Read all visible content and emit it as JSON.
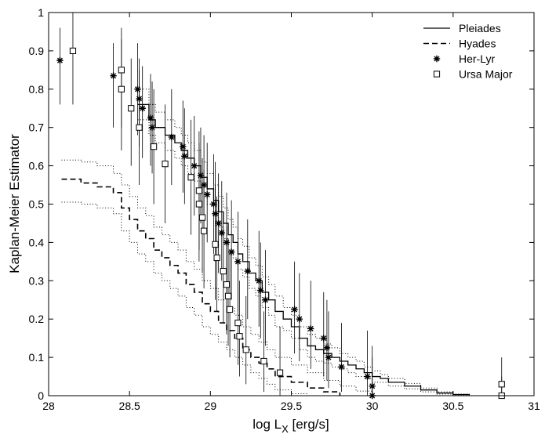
{
  "chart_data": {
    "type": "scatter",
    "title": "",
    "xlabel": "log L",
    "xlabel_subscript": "X",
    "xlabel_units": " [erg/s]",
    "ylabel": "Kaplan-Meier Estimator",
    "xlim": [
      28,
      31
    ],
    "ylim": [
      0,
      1
    ],
    "x_ticks": [
      28,
      28.5,
      29,
      29.5,
      30,
      30.5,
      31
    ],
    "x_tick_labels": [
      "28",
      "28.5",
      "29",
      "29.5",
      "30",
      "30.5",
      "31"
    ],
    "y_ticks": [
      0,
      0.1,
      0.2,
      0.3,
      0.4,
      0.5,
      0.6,
      0.7,
      0.8,
      0.9,
      1
    ],
    "y_tick_labels": [
      "0",
      "0.1",
      "0.2",
      "0.3",
      "0.4",
      "0.5",
      "0.6",
      "0.7",
      "0.8",
      "0.9",
      "1"
    ],
    "grid": false,
    "legend_position": "top-right",
    "legend": [
      {
        "name": "Pleiades",
        "marker": "solid-line"
      },
      {
        "name": "Hyades",
        "marker": "dashed-line"
      },
      {
        "name": "Her-Lyr",
        "marker": "asterisk"
      },
      {
        "name": "Ursa Major",
        "marker": "open-square"
      }
    ],
    "series": [
      {
        "name": "Pleiades",
        "style": "step-solid",
        "x": [
          28.55,
          28.62,
          28.66,
          28.72,
          28.78,
          28.82,
          28.86,
          28.9,
          28.94,
          28.98,
          29.02,
          29.05,
          29.08,
          29.11,
          29.14,
          29.17,
          29.2,
          29.24,
          29.28,
          29.32,
          29.36,
          29.4,
          29.45,
          29.5,
          29.55,
          29.6,
          29.65,
          29.7,
          29.75,
          29.8,
          29.85,
          29.9,
          29.95,
          30.0,
          30.05,
          30.1,
          30.2,
          30.3,
          30.4,
          30.5,
          30.6
        ],
        "y": [
          0.76,
          0.72,
          0.7,
          0.68,
          0.66,
          0.64,
          0.62,
          0.6,
          0.57,
          0.54,
          0.51,
          0.48,
          0.45,
          0.42,
          0.4,
          0.37,
          0.35,
          0.32,
          0.3,
          0.27,
          0.25,
          0.22,
          0.2,
          0.18,
          0.15,
          0.13,
          0.12,
          0.11,
          0.1,
          0.09,
          0.08,
          0.07,
          0.06,
          0.05,
          0.045,
          0.035,
          0.025,
          0.015,
          0.007,
          0.003,
          0.0
        ]
      },
      {
        "name": "Pleiades upper bound",
        "style": "step-dotted",
        "x": [
          28.55,
          28.62,
          28.66,
          28.72,
          28.78,
          28.82,
          28.86,
          28.9,
          28.94,
          28.98,
          29.02,
          29.05,
          29.08,
          29.11,
          29.14,
          29.17,
          29.2,
          29.24,
          29.28,
          29.32,
          29.36,
          29.4,
          29.45,
          29.5,
          29.55,
          29.6,
          29.65,
          29.7,
          29.75,
          29.8,
          29.85,
          29.9,
          29.95,
          30.0,
          30.05,
          30.1,
          30.2,
          30.3,
          30.4,
          30.5,
          30.6
        ],
        "y": [
          0.8,
          0.76,
          0.74,
          0.72,
          0.7,
          0.68,
          0.66,
          0.64,
          0.61,
          0.58,
          0.55,
          0.52,
          0.49,
          0.46,
          0.44,
          0.41,
          0.39,
          0.36,
          0.34,
          0.31,
          0.29,
          0.26,
          0.23,
          0.21,
          0.18,
          0.16,
          0.15,
          0.135,
          0.125,
          0.11,
          0.1,
          0.09,
          0.075,
          0.065,
          0.055,
          0.045,
          0.032,
          0.02,
          0.01,
          0.004,
          0.0
        ]
      },
      {
        "name": "Pleiades lower bound",
        "style": "step-dotted",
        "x": [
          28.55,
          28.62,
          28.66,
          28.72,
          28.78,
          28.82,
          28.86,
          28.9,
          28.94,
          28.98,
          29.02,
          29.05,
          29.08,
          29.11,
          29.14,
          29.17,
          29.2,
          29.24,
          29.28,
          29.32,
          29.36,
          29.4,
          29.45,
          29.5,
          29.55,
          29.6,
          29.65,
          29.7,
          29.75,
          29.8,
          29.85,
          29.9,
          29.95,
          30.0,
          30.05,
          30.1,
          30.2,
          30.3,
          30.4,
          30.5,
          30.6
        ],
        "y": [
          0.72,
          0.68,
          0.66,
          0.64,
          0.62,
          0.6,
          0.58,
          0.56,
          0.53,
          0.5,
          0.47,
          0.44,
          0.41,
          0.38,
          0.36,
          0.33,
          0.31,
          0.28,
          0.26,
          0.23,
          0.21,
          0.18,
          0.17,
          0.15,
          0.12,
          0.1,
          0.09,
          0.085,
          0.075,
          0.07,
          0.06,
          0.05,
          0.045,
          0.035,
          0.035,
          0.025,
          0.018,
          0.01,
          0.004,
          0.002,
          0.0
        ]
      },
      {
        "name": "Hyades",
        "style": "step-dashed",
        "x": [
          28.08,
          28.2,
          28.3,
          28.4,
          28.45,
          28.5,
          28.55,
          28.6,
          28.65,
          28.7,
          28.75,
          28.8,
          28.85,
          28.9,
          28.95,
          29.0,
          29.05,
          29.1,
          29.15,
          29.2,
          29.25,
          29.3,
          29.35,
          29.4,
          29.5,
          29.6,
          29.7,
          29.8
        ],
        "y": [
          0.565,
          0.555,
          0.545,
          0.53,
          0.49,
          0.46,
          0.43,
          0.41,
          0.38,
          0.36,
          0.34,
          0.32,
          0.29,
          0.27,
          0.24,
          0.22,
          0.19,
          0.17,
          0.15,
          0.12,
          0.1,
          0.085,
          0.07,
          0.05,
          0.035,
          0.02,
          0.01,
          0.0
        ]
      },
      {
        "name": "Hyades upper bound",
        "style": "step-dotted",
        "x": [
          28.08,
          28.2,
          28.3,
          28.4,
          28.45,
          28.5,
          28.55,
          28.6,
          28.65,
          28.7,
          28.75,
          28.8,
          28.85,
          28.9,
          28.95,
          29.0,
          29.05,
          29.1,
          29.15,
          29.2,
          29.25,
          29.3,
          29.35,
          29.4,
          29.5,
          29.6,
          29.7,
          29.8,
          29.9,
          30.0
        ],
        "y": [
          0.615,
          0.61,
          0.6,
          0.58,
          0.55,
          0.52,
          0.49,
          0.47,
          0.44,
          0.42,
          0.4,
          0.38,
          0.35,
          0.33,
          0.3,
          0.28,
          0.25,
          0.23,
          0.21,
          0.18,
          0.16,
          0.14,
          0.12,
          0.1,
          0.08,
          0.06,
          0.04,
          0.025,
          0.012,
          0.0
        ]
      },
      {
        "name": "Hyades lower bound",
        "style": "step-dotted",
        "x": [
          28.08,
          28.2,
          28.3,
          28.4,
          28.45,
          28.5,
          28.55,
          28.6,
          28.65,
          28.7,
          28.75,
          28.8,
          28.85,
          28.9,
          28.95,
          29.0,
          29.05,
          29.1,
          29.15,
          29.2,
          29.25,
          29.3,
          29.35,
          29.4,
          29.5,
          29.6,
          29.7
        ],
        "y": [
          0.505,
          0.5,
          0.49,
          0.475,
          0.43,
          0.4,
          0.37,
          0.35,
          0.32,
          0.3,
          0.28,
          0.26,
          0.23,
          0.21,
          0.18,
          0.16,
          0.14,
          0.12,
          0.1,
          0.08,
          0.06,
          0.045,
          0.03,
          0.015,
          0.005,
          0.0,
          0.0
        ]
      },
      {
        "name": "Her-Lyr",
        "style": "asterisk",
        "points": [
          {
            "x": 28.07,
            "y": 0.875,
            "lo": 0.76,
            "hi": 0.96
          },
          {
            "x": 28.4,
            "y": 0.835,
            "lo": 0.7,
            "hi": 0.92
          },
          {
            "x": 28.55,
            "y": 0.8,
            "lo": 0.68,
            "hi": 0.92
          },
          {
            "x": 28.56,
            "y": 0.775,
            "lo": 0.65,
            "hi": 0.88
          },
          {
            "x": 28.58,
            "y": 0.75,
            "lo": 0.62,
            "hi": 0.86
          },
          {
            "x": 28.63,
            "y": 0.725,
            "lo": 0.6,
            "hi": 0.84
          },
          {
            "x": 28.64,
            "y": 0.7,
            "lo": 0.58,
            "hi": 0.82
          },
          {
            "x": 28.76,
            "y": 0.675,
            "lo": 0.55,
            "hi": 0.8
          },
          {
            "x": 28.83,
            "y": 0.65,
            "lo": 0.53,
            "hi": 0.77
          },
          {
            "x": 28.84,
            "y": 0.625,
            "lo": 0.5,
            "hi": 0.75
          },
          {
            "x": 28.9,
            "y": 0.6,
            "lo": 0.47,
            "hi": 0.73
          },
          {
            "x": 28.94,
            "y": 0.575,
            "lo": 0.45,
            "hi": 0.7
          },
          {
            "x": 28.96,
            "y": 0.55,
            "lo": 0.42,
            "hi": 0.68
          },
          {
            "x": 28.98,
            "y": 0.525,
            "lo": 0.4,
            "hi": 0.66
          },
          {
            "x": 29.02,
            "y": 0.5,
            "lo": 0.37,
            "hi": 0.63
          },
          {
            "x": 29.03,
            "y": 0.475,
            "lo": 0.35,
            "hi": 0.61
          },
          {
            "x": 29.05,
            "y": 0.45,
            "lo": 0.32,
            "hi": 0.58
          },
          {
            "x": 29.07,
            "y": 0.425,
            "lo": 0.3,
            "hi": 0.56
          },
          {
            "x": 29.1,
            "y": 0.4,
            "lo": 0.27,
            "hi": 0.53
          },
          {
            "x": 29.13,
            "y": 0.375,
            "lo": 0.25,
            "hi": 0.51
          },
          {
            "x": 29.17,
            "y": 0.35,
            "lo": 0.22,
            "hi": 0.48
          },
          {
            "x": 29.23,
            "y": 0.325,
            "lo": 0.2,
            "hi": 0.46
          },
          {
            "x": 29.3,
            "y": 0.3,
            "lo": 0.18,
            "hi": 0.43
          },
          {
            "x": 29.31,
            "y": 0.275,
            "lo": 0.15,
            "hi": 0.4
          },
          {
            "x": 29.34,
            "y": 0.25,
            "lo": 0.13,
            "hi": 0.38
          },
          {
            "x": 29.52,
            "y": 0.225,
            "lo": 0.11,
            "hi": 0.35
          },
          {
            "x": 29.55,
            "y": 0.2,
            "lo": 0.09,
            "hi": 0.32
          },
          {
            "x": 29.62,
            "y": 0.175,
            "lo": 0.07,
            "hi": 0.3
          },
          {
            "x": 29.7,
            "y": 0.15,
            "lo": 0.05,
            "hi": 0.27
          },
          {
            "x": 29.72,
            "y": 0.125,
            "lo": 0.04,
            "hi": 0.25
          },
          {
            "x": 29.73,
            "y": 0.1,
            "lo": 0.02,
            "hi": 0.22
          },
          {
            "x": 29.81,
            "y": 0.075,
            "lo": 0.01,
            "hi": 0.19
          },
          {
            "x": 29.97,
            "y": 0.05,
            "lo": 0.0,
            "hi": 0.17
          },
          {
            "x": 30.0,
            "y": 0.025,
            "lo": 0.0,
            "hi": 0.13
          },
          {
            "x": 30.0,
            "y": 0.0,
            "lo": 0.0,
            "hi": 0.1
          }
        ]
      },
      {
        "name": "Ursa Major",
        "style": "open-square",
        "points": [
          {
            "x": 28.15,
            "y": 0.9,
            "lo": 0.76,
            "hi": 1.0
          },
          {
            "x": 28.45,
            "y": 0.85,
            "lo": 0.7,
            "hi": 0.96
          },
          {
            "x": 28.45,
            "y": 0.8,
            "lo": 0.64,
            "hi": 0.93
          },
          {
            "x": 28.51,
            "y": 0.75,
            "lo": 0.6,
            "hi": 0.88
          },
          {
            "x": 28.56,
            "y": 0.7,
            "lo": 0.55,
            "hi": 0.85
          },
          {
            "x": 28.65,
            "y": 0.65,
            "lo": 0.5,
            "hi": 0.8
          },
          {
            "x": 28.72,
            "y": 0.605,
            "lo": 0.45,
            "hi": 0.76
          },
          {
            "x": 28.88,
            "y": 0.57,
            "lo": 0.42,
            "hi": 0.72
          },
          {
            "x": 28.93,
            "y": 0.535,
            "lo": 0.38,
            "hi": 0.69
          },
          {
            "x": 28.93,
            "y": 0.5,
            "lo": 0.35,
            "hi": 0.66
          },
          {
            "x": 28.95,
            "y": 0.465,
            "lo": 0.32,
            "hi": 0.62
          },
          {
            "x": 28.96,
            "y": 0.43,
            "lo": 0.28,
            "hi": 0.59
          },
          {
            "x": 29.03,
            "y": 0.395,
            "lo": 0.25,
            "hi": 0.55
          },
          {
            "x": 29.04,
            "y": 0.36,
            "lo": 0.22,
            "hi": 0.52
          },
          {
            "x": 29.08,
            "y": 0.325,
            "lo": 0.19,
            "hi": 0.48
          },
          {
            "x": 29.1,
            "y": 0.29,
            "lo": 0.16,
            "hi": 0.44
          },
          {
            "x": 29.11,
            "y": 0.26,
            "lo": 0.13,
            "hi": 0.41
          },
          {
            "x": 29.12,
            "y": 0.225,
            "lo": 0.1,
            "hi": 0.37
          },
          {
            "x": 29.17,
            "y": 0.19,
            "lo": 0.08,
            "hi": 0.34
          },
          {
            "x": 29.18,
            "y": 0.155,
            "lo": 0.05,
            "hi": 0.3
          },
          {
            "x": 29.22,
            "y": 0.12,
            "lo": 0.03,
            "hi": 0.26
          },
          {
            "x": 29.33,
            "y": 0.09,
            "lo": 0.01,
            "hi": 0.22
          },
          {
            "x": 29.43,
            "y": 0.06,
            "lo": 0.0,
            "hi": 0.18
          },
          {
            "x": 30.8,
            "y": 0.03,
            "lo": 0.0,
            "hi": 0.1
          },
          {
            "x": 30.8,
            "y": 0.0,
            "lo": 0.0,
            "hi": 0.05
          }
        ]
      }
    ]
  }
}
